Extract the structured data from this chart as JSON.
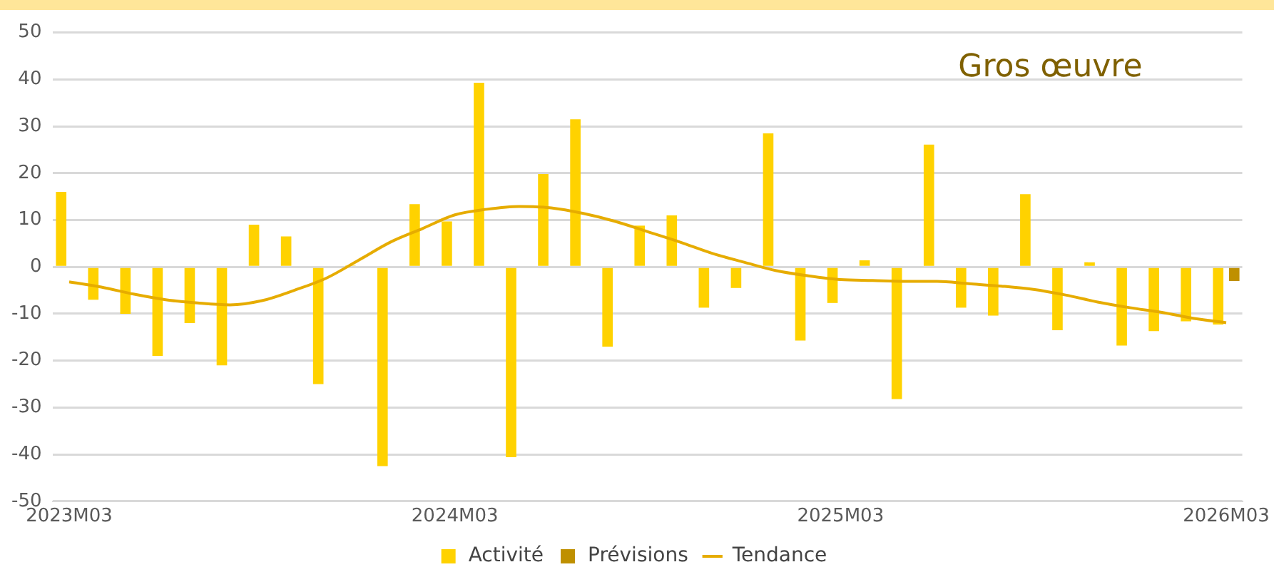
{
  "chart_data": {
    "type": "bar",
    "title": "Gros œuvre",
    "categories": [
      "2023M03",
      null,
      null,
      null,
      null,
      null,
      null,
      null,
      null,
      null,
      null,
      null,
      "2024M03",
      null,
      null,
      null,
      null,
      null,
      null,
      null,
      null,
      null,
      null,
      null,
      "2025M03",
      null,
      null,
      null,
      null,
      null,
      null,
      null,
      null,
      null,
      null,
      null,
      "2026M03"
    ],
    "series": [
      {
        "name": "Activité",
        "color": "#ffd200",
        "values": [
          16,
          -7,
          -10,
          -19,
          -12,
          -21,
          9,
          6.5,
          -25,
          0.3,
          -42.5,
          13.4,
          9.7,
          39.3,
          -40.6,
          19.8,
          31.5,
          -17,
          8.8,
          11,
          -8.7,
          -4.5,
          28.5,
          -15.7,
          -7.7,
          1.4,
          -28.2,
          26.1,
          -8.7,
          -10.4,
          15.5,
          -13.5,
          1,
          -16.8,
          -13.7,
          -11.6,
          -12.3
        ]
      },
      {
        "name": "Prévisions",
        "color": "#bf9000",
        "values": [
          null,
          null,
          null,
          null,
          null,
          null,
          null,
          null,
          null,
          null,
          null,
          null,
          null,
          null,
          null,
          null,
          null,
          null,
          null,
          null,
          null,
          null,
          null,
          null,
          null,
          null,
          null,
          null,
          null,
          null,
          null,
          null,
          null,
          null,
          null,
          null,
          -3
        ]
      },
      {
        "name": "Tendance",
        "type": "line",
        "color": "#e6ac00",
        "values": [
          -3.2,
          -4.3,
          -5.8,
          -7,
          -7.7,
          -8.1,
          -7.2,
          -5,
          -2.4,
          1.4,
          5.3,
          8.2,
          11.1,
          12.3,
          12.9,
          12.6,
          11.4,
          9.7,
          7.5,
          5.3,
          2.9,
          1,
          -0.8,
          -1.9,
          -2.7,
          -2.9,
          -3.1,
          -3.1,
          -3.6,
          -4.1,
          -4.8,
          -6,
          -7.5,
          -8.7,
          -9.7,
          -11,
          -11.9
        ]
      }
    ],
    "ylim": [
      -50,
      50
    ],
    "yticks": [
      -50,
      -40,
      -30,
      -20,
      -10,
      0,
      10,
      20,
      30,
      40,
      50
    ],
    "grid": "y",
    "legend": "bottom",
    "marker": "none",
    "line_style": "solid"
  }
}
